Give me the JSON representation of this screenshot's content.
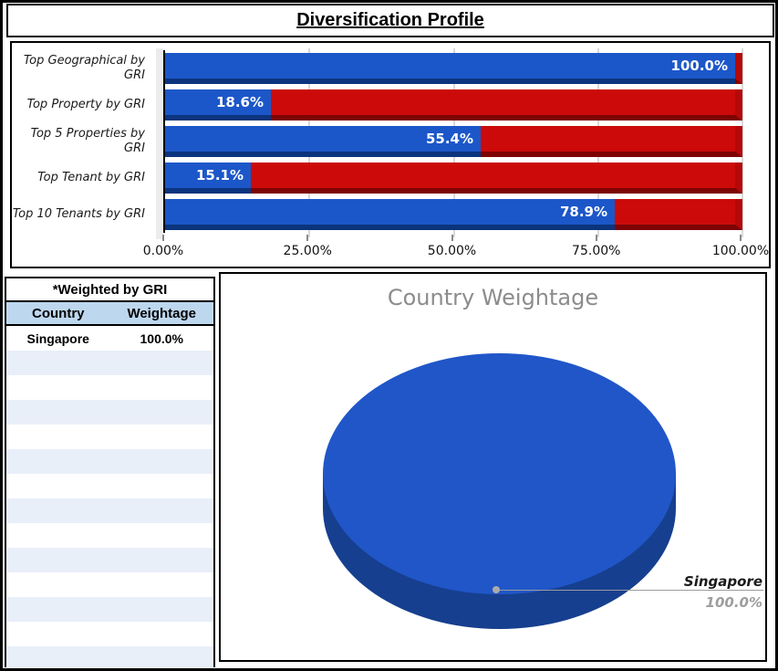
{
  "title": "Diversification Profile",
  "colors": {
    "bar_blue": "#1C57C9",
    "bar_blue_bevel": "#0C347E",
    "bar_red": "#CC0A0A",
    "bar_red_bevel": "#7E0404",
    "pie_top": "#2056C8",
    "pie_side": "#163F8F",
    "table_header_bg": "#BDD7EE",
    "table_band_bg": "#E9EFF9"
  },
  "chart_data": [
    {
      "type": "bar",
      "orientation": "horizontal",
      "stacked": true,
      "title": "Diversification Profile",
      "categories": [
        "Top Geographical by GRI",
        "Top Property by GRI",
        "Top 5 Properties by GRI",
        "Top Tenant by GRI",
        "Top 10 Tenants by GRI"
      ],
      "series": [
        {
          "color": "#1C57C9",
          "values": [
            100.0,
            18.6,
            55.4,
            15.1,
            78.9
          ]
        },
        {
          "color": "#CC0A0A",
          "values": [
            0.0,
            81.4,
            44.6,
            84.9,
            21.1
          ]
        }
      ],
      "value_labels": [
        "100.0%",
        "18.6%",
        "55.4%",
        "15.1%",
        "78.9%"
      ],
      "x_ticks": [
        "0.00%",
        "25.00%",
        "50.00%",
        "75.00%",
        "100.00%"
      ],
      "xlim": [
        0,
        100
      ],
      "grid": true,
      "legend": "none"
    },
    {
      "type": "pie",
      "title": "Country Weightage",
      "labels": [
        "Singapore"
      ],
      "values": [
        100.0
      ],
      "value_labels": [
        "100.0%"
      ],
      "colors": [
        "#2056C8"
      ],
      "style": "3d"
    }
  ],
  "table": {
    "caption": "*Weighted by GRI",
    "headers": [
      "Country",
      "Weightage"
    ],
    "rows": [
      [
        "Singapore",
        "100.0%"
      ]
    ],
    "empty_row_count": 13
  }
}
